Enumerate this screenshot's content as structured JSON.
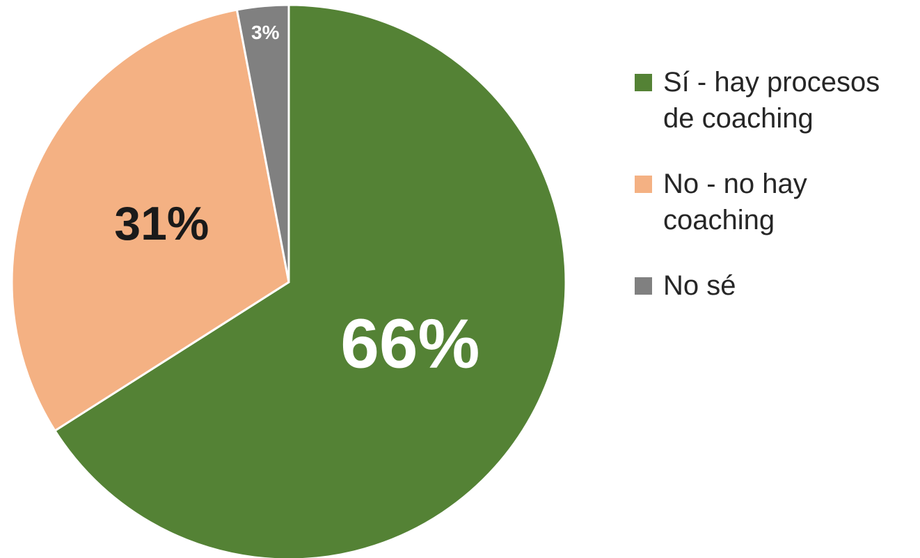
{
  "chart_data": {
    "type": "pie",
    "categories": [
      "Sí - hay procesos de coaching",
      "No - no hay coaching",
      "No sé"
    ],
    "values": [
      66,
      31,
      3
    ],
    "value_labels": [
      "66%",
      "31%",
      "3%"
    ],
    "colors": [
      "#548235",
      "#f4b183",
      "#808080"
    ],
    "legend": "right"
  }
}
